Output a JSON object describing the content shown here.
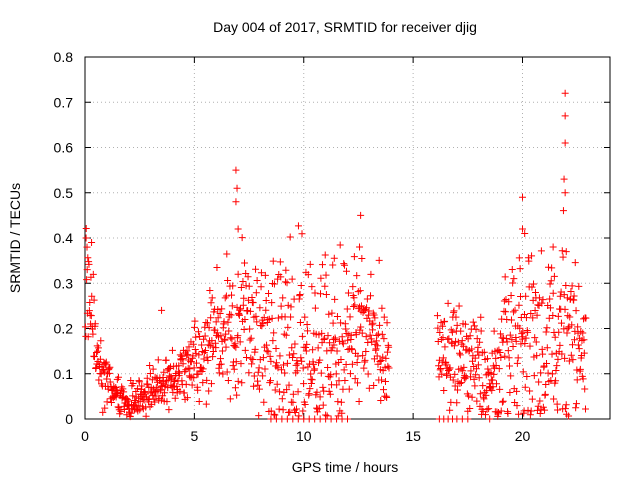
{
  "chart_data": {
    "type": "scatter",
    "title": "Day 004 of 2017, SRMTID for receiver djig",
    "xlabel": "GPS time / hours",
    "ylabel": "SRMTID / TECUs",
    "xlim": [
      0,
      24
    ],
    "ylim": [
      0,
      0.8
    ],
    "grid": true,
    "xticks": [
      0,
      5,
      10,
      15,
      20
    ],
    "yticks": [
      0,
      0.1,
      0.2,
      0.3,
      0.4,
      0.5,
      0.6,
      0.7,
      0.8
    ],
    "marker": "+",
    "color": "#ff0000",
    "data_gap_hours": [
      13.9,
      16.1
    ],
    "outliers": [
      {
        "x": 0.05,
        "y": 0.4
      },
      {
        "x": 0.1,
        "y": 0.33
      },
      {
        "x": 0.3,
        "y": 0.39
      },
      {
        "x": 3.5,
        "y": 0.24
      },
      {
        "x": 6.9,
        "y": 0.55
      },
      {
        "x": 6.95,
        "y": 0.51
      },
      {
        "x": 6.9,
        "y": 0.48
      },
      {
        "x": 7.0,
        "y": 0.42
      },
      {
        "x": 7.0,
        "y": 0.32
      },
      {
        "x": 12.6,
        "y": 0.45
      },
      {
        "x": 12.55,
        "y": 0.38
      },
      {
        "x": 20.0,
        "y": 0.49
      },
      {
        "x": 20.0,
        "y": 0.42
      },
      {
        "x": 20.1,
        "y": 0.41
      },
      {
        "x": 21.4,
        "y": 0.38
      },
      {
        "x": 21.95,
        "y": 0.72
      },
      {
        "x": 21.95,
        "y": 0.67
      },
      {
        "x": 21.95,
        "y": 0.61
      },
      {
        "x": 21.9,
        "y": 0.53
      },
      {
        "x": 21.95,
        "y": 0.5
      },
      {
        "x": 22.0,
        "y": 0.37
      }
    ],
    "trend": [
      {
        "x": 0.0,
        "y": 0.3
      },
      {
        "x": 0.3,
        "y": 0.25
      },
      {
        "x": 0.6,
        "y": 0.11
      },
      {
        "x": 1.0,
        "y": 0.08
      },
      {
        "x": 1.5,
        "y": 0.05
      },
      {
        "x": 2.0,
        "y": 0.03
      },
      {
        "x": 2.5,
        "y": 0.04
      },
      {
        "x": 3.0,
        "y": 0.06
      },
      {
        "x": 3.5,
        "y": 0.08
      },
      {
        "x": 4.0,
        "y": 0.09
      },
      {
        "x": 4.5,
        "y": 0.1
      },
      {
        "x": 5.0,
        "y": 0.12
      },
      {
        "x": 5.5,
        "y": 0.15
      },
      {
        "x": 6.0,
        "y": 0.18
      },
      {
        "x": 6.5,
        "y": 0.19
      },
      {
        "x": 7.0,
        "y": 0.2
      },
      {
        "x": 7.5,
        "y": 0.21
      },
      {
        "x": 8.0,
        "y": 0.19
      },
      {
        "x": 8.5,
        "y": 0.15
      },
      {
        "x": 9.0,
        "y": 0.14
      },
      {
        "x": 9.5,
        "y": 0.15
      },
      {
        "x": 10.0,
        "y": 0.14
      },
      {
        "x": 10.5,
        "y": 0.13
      },
      {
        "x": 11.0,
        "y": 0.14
      },
      {
        "x": 11.5,
        "y": 0.16
      },
      {
        "x": 12.0,
        "y": 0.19
      },
      {
        "x": 12.5,
        "y": 0.23
      },
      {
        "x": 13.0,
        "y": 0.22
      },
      {
        "x": 13.5,
        "y": 0.17
      },
      {
        "x": 13.9,
        "y": 0.14
      },
      {
        "x": 16.1,
        "y": 0.14
      },
      {
        "x": 16.5,
        "y": 0.13
      },
      {
        "x": 17.0,
        "y": 0.13
      },
      {
        "x": 17.5,
        "y": 0.12
      },
      {
        "x": 18.0,
        "y": 0.1
      },
      {
        "x": 18.5,
        "y": 0.07
      },
      {
        "x": 19.0,
        "y": 0.13
      },
      {
        "x": 19.5,
        "y": 0.17
      },
      {
        "x": 20.0,
        "y": 0.17
      },
      {
        "x": 20.5,
        "y": 0.16
      },
      {
        "x": 21.0,
        "y": 0.15
      },
      {
        "x": 21.5,
        "y": 0.16
      },
      {
        "x": 22.0,
        "y": 0.18
      },
      {
        "x": 22.5,
        "y": 0.15
      },
      {
        "x": 22.9,
        "y": 0.14
      }
    ],
    "zero_points_x": [
      8.5,
      8.75,
      9.0,
      9.25,
      9.5,
      9.75,
      10.0,
      10.25,
      10.5,
      10.75,
      11.0,
      11.25,
      11.5,
      11.75,
      12.0,
      16.2,
      16.4,
      16.6,
      16.8,
      17.0,
      17.25,
      17.5,
      18.5
    ]
  }
}
